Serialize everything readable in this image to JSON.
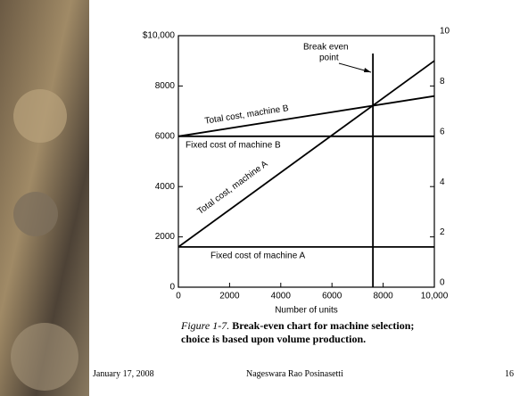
{
  "chart_data": {
    "type": "line",
    "x": [
      0,
      10000
    ],
    "series": [
      {
        "name": "Total cost, machine A",
        "color": "#000000",
        "values": [
          1600,
          9000
        ]
      },
      {
        "name": "Fixed cost of machine A",
        "color": "#000000",
        "values": [
          1600,
          1600
        ]
      },
      {
        "name": "Total cost, machine B",
        "color": "#000000",
        "values": [
          6000,
          7600
        ]
      },
      {
        "name": "Fixed cost of machine B",
        "color": "#000000",
        "values": [
          6000,
          6000
        ]
      }
    ],
    "xlim": [
      0,
      10000
    ],
    "xticks": [
      0,
      2000,
      4000,
      6000,
      8000,
      {
        "value": 10000,
        "label": "10,000"
      }
    ],
    "ylim": [
      0,
      10000
    ],
    "yticks": [
      0,
      2000,
      4000,
      6000,
      8000,
      {
        "value": 10000,
        "label": "$10,000"
      }
    ],
    "y2lim": [
      0,
      10
    ],
    "y2ticks": [
      0,
      2,
      4,
      6,
      8,
      10
    ],
    "xlabel": "Number of units",
    "break_even": {
      "text": [
        "Break even",
        "point"
      ],
      "x": 7600
    },
    "figure_label": "Figure 1-7.",
    "caption": "Break-even chart for machine selection; choice is based upon volume production."
  },
  "footer": {
    "date": "January 17, 2008",
    "author": "Nageswara Rao Posinasetti",
    "page": "16"
  }
}
